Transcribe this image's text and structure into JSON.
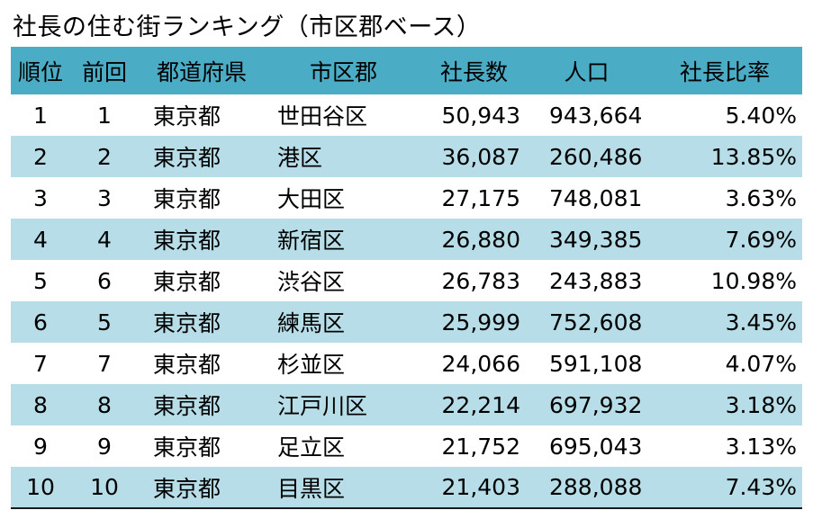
{
  "title": "社長の住む街ランキング（市区郡ベース）",
  "table": {
    "headers": {
      "rank": "順位",
      "previous": "前回",
      "prefecture": "都道府県",
      "city": "市区郡",
      "presidents": "社長数",
      "population": "人口",
      "ratio": "社長比率"
    },
    "rows": [
      {
        "rank": "1",
        "previous": "1",
        "prefecture": "東京都",
        "city": "世田谷区",
        "presidents": "50,943",
        "population": "943,664",
        "ratio": "5.40%"
      },
      {
        "rank": "2",
        "previous": "2",
        "prefecture": "東京都",
        "city": "港区",
        "presidents": "36,087",
        "population": "260,486",
        "ratio": "13.85%"
      },
      {
        "rank": "3",
        "previous": "3",
        "prefecture": "東京都",
        "city": "大田区",
        "presidents": "27,175",
        "population": "748,081",
        "ratio": "3.63%"
      },
      {
        "rank": "4",
        "previous": "4",
        "prefecture": "東京都",
        "city": "新宿区",
        "presidents": "26,880",
        "population": "349,385",
        "ratio": "7.69%"
      },
      {
        "rank": "5",
        "previous": "6",
        "prefecture": "東京都",
        "city": "渋谷区",
        "presidents": "26,783",
        "population": "243,883",
        "ratio": "10.98%"
      },
      {
        "rank": "6",
        "previous": "5",
        "prefecture": "東京都",
        "city": "練馬区",
        "presidents": "25,999",
        "population": "752,608",
        "ratio": "3.45%"
      },
      {
        "rank": "7",
        "previous": "7",
        "prefecture": "東京都",
        "city": "杉並区",
        "presidents": "24,066",
        "population": "591,108",
        "ratio": "4.07%"
      },
      {
        "rank": "8",
        "previous": "8",
        "prefecture": "東京都",
        "city": "江戸川区",
        "presidents": "22,214",
        "population": "697,932",
        "ratio": "3.18%"
      },
      {
        "rank": "9",
        "previous": "9",
        "prefecture": "東京都",
        "city": "足立区",
        "presidents": "21,752",
        "population": "695,043",
        "ratio": "3.13%"
      },
      {
        "rank": "10",
        "previous": "10",
        "prefecture": "東京都",
        "city": "目黒区",
        "presidents": "21,403",
        "population": "288,088",
        "ratio": "7.43%"
      }
    ]
  },
  "colors": {
    "header_background": "#4bacc6",
    "stripe_background": "#b7dee8",
    "row_background": "#ffffff",
    "text": "#000000"
  }
}
